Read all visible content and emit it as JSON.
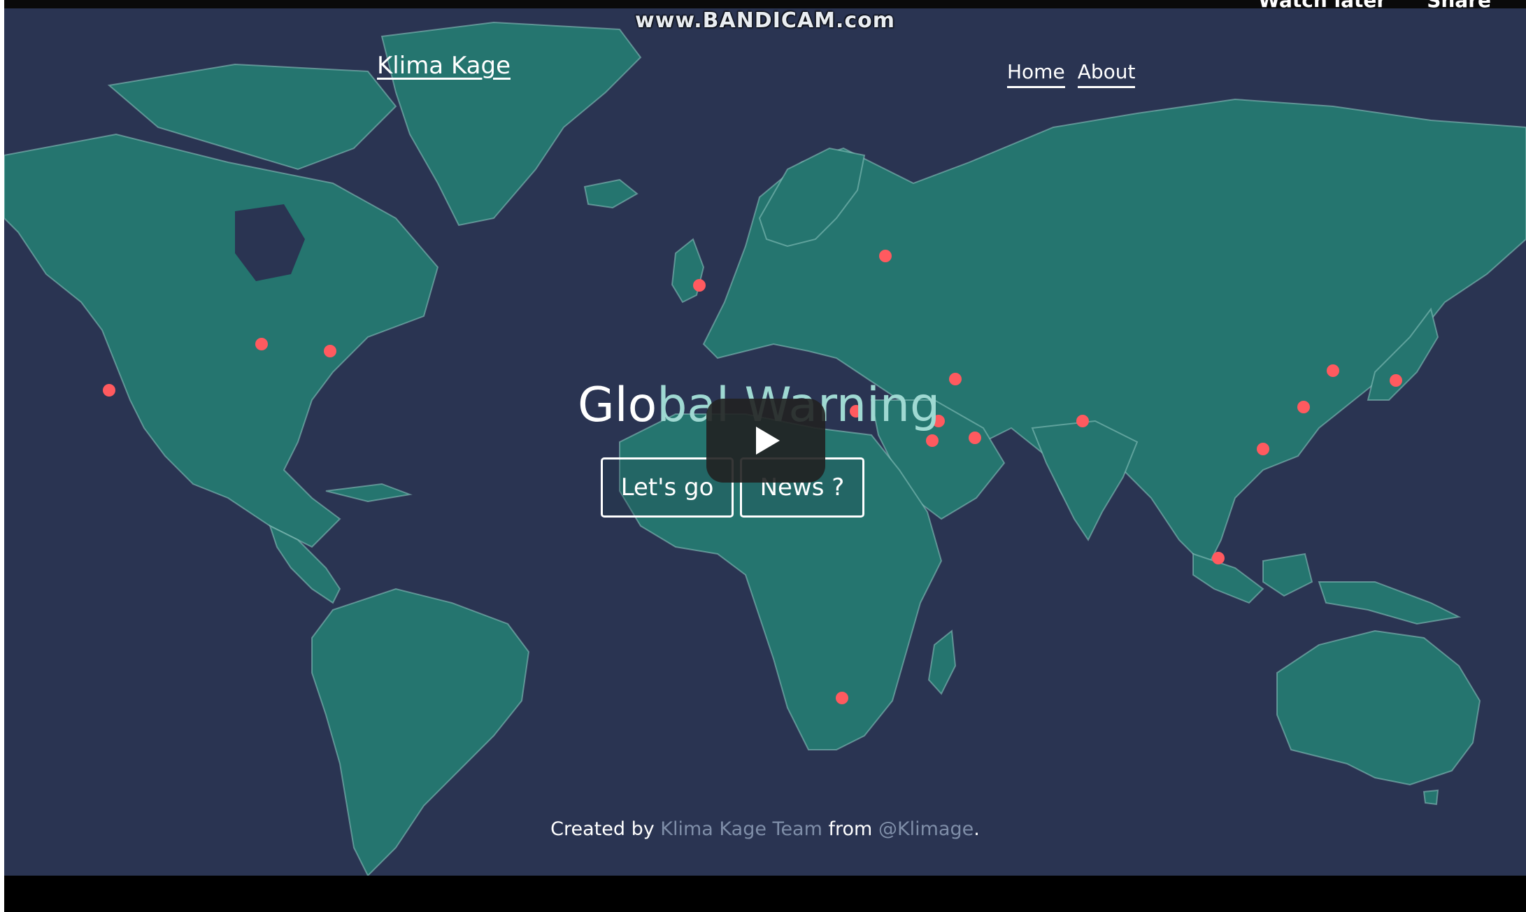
{
  "watermark": "www.BANDICAM.com",
  "youtube": {
    "watch_later": "Watch later",
    "share": "Share"
  },
  "site": {
    "brand": "Klima Kage",
    "nav": [
      {
        "label": "Home"
      },
      {
        "label": "About"
      }
    ]
  },
  "hero": {
    "title_part1": "Glo",
    "title_part2": "bal Warning",
    "buttons": {
      "go": "Let's go",
      "news": "News ?"
    }
  },
  "footer": {
    "prefix": "Created by",
    "team": "Klima Kage Team",
    "middle": "from",
    "handle": "@Klimage",
    "suffix": "."
  },
  "colors": {
    "background": "#2a3452",
    "land": "#25756f",
    "hotspot": "#ff5a5f",
    "muted_text": "#7f8ea8"
  }
}
